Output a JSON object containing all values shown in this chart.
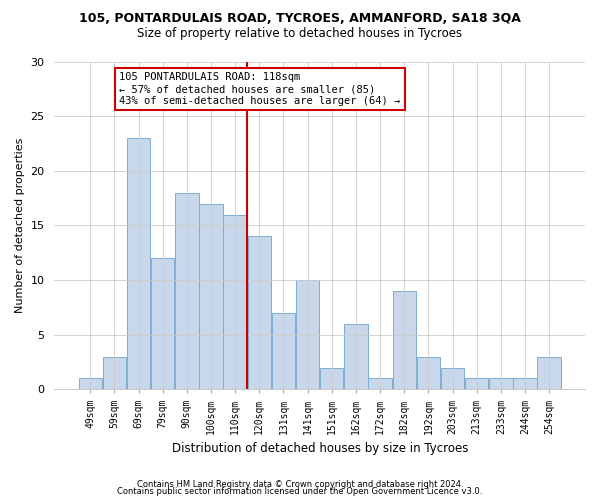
{
  "title1": "105, PONTARDULAIS ROAD, TYCROES, AMMANFORD, SA18 3QA",
  "title2": "Size of property relative to detached houses in Tycroes",
  "xlabel": "Distribution of detached houses by size in Tycroes",
  "ylabel": "Number of detached properties",
  "categories": [
    "49sqm",
    "59sqm",
    "69sqm",
    "79sqm",
    "90sqm",
    "100sqm",
    "110sqm",
    "120sqm",
    "131sqm",
    "141sqm",
    "151sqm",
    "162sqm",
    "172sqm",
    "182sqm",
    "192sqm",
    "203sqm",
    "213sqm",
    "233sqm",
    "244sqm",
    "254sqm"
  ],
  "values": [
    1,
    3,
    23,
    12,
    18,
    17,
    16,
    14,
    7,
    10,
    2,
    6,
    1,
    9,
    3,
    2,
    1,
    1,
    1,
    3
  ],
  "bar_color": "#c8d8ea",
  "bar_edge_color": "#7fadd4",
  "ref_line_index": 7,
  "ref_line_label": "105 PONTARDULAIS ROAD: 118sqm",
  "annotation_line2": "← 57% of detached houses are smaller (85)",
  "annotation_line3": "43% of semi-detached houses are larger (64) →",
  "annotation_box_color": "#ffffff",
  "annotation_box_edge": "#cc0000",
  "ref_line_color": "#cc0000",
  "ylim": [
    0,
    30
  ],
  "yticks": [
    0,
    5,
    10,
    15,
    20,
    25,
    30
  ],
  "footer1": "Contains HM Land Registry data © Crown copyright and database right 2024.",
  "footer2": "Contains public sector information licensed under the Open Government Licence v3.0.",
  "bg_color": "#ffffff",
  "plot_bg_color": "#ffffff"
}
